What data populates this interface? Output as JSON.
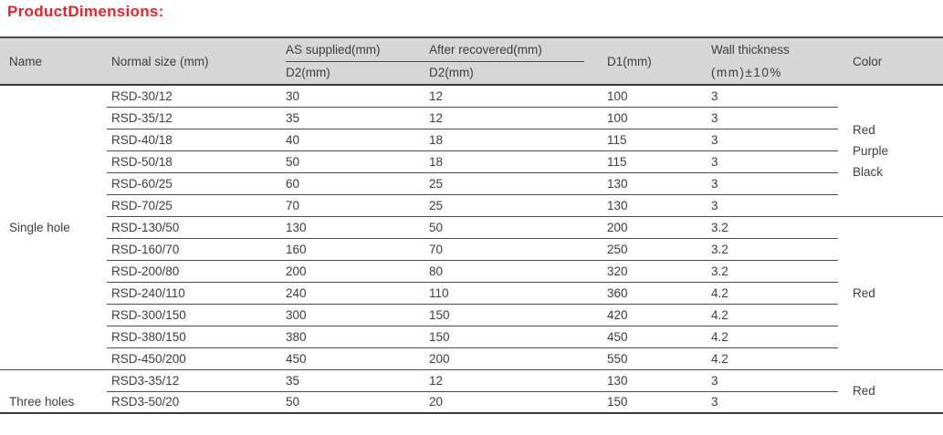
{
  "title": "ProductDimensions:",
  "colors": {
    "title_red": "#e82329",
    "header_bg": "#d6d6d6",
    "text": "#3d3d3d",
    "rule_line": "#4f4f4f"
  },
  "table": {
    "headers": {
      "name": "Name",
      "normal_size": "Normal size (mm)",
      "as_supplied": "AS supplied(mm)",
      "as_supplied_sub": "D2(mm)",
      "after_recovered": "After recovered(mm)",
      "after_recovered_sub": "D2(mm)",
      "d1": "D1(mm)",
      "wall_line1": "Wall thickness",
      "wall_line2": "(mm)±10%",
      "color": "Color"
    },
    "groups": [
      {
        "name": "Single hole",
        "rows": [
          {
            "size": "RSD-30/12",
            "as_d2": "30",
            "after_d2": "12",
            "d1": "100",
            "wall": "3"
          },
          {
            "size": "RSD-35/12",
            "as_d2": "35",
            "after_d2": "12",
            "d1": "100",
            "wall": "3"
          },
          {
            "size": "RSD-40/18",
            "as_d2": "40",
            "after_d2": "18",
            "d1": "115",
            "wall": "3"
          },
          {
            "size": "RSD-50/18",
            "as_d2": "50",
            "after_d2": "18",
            "d1": "115",
            "wall": "3"
          },
          {
            "size": "RSD-60/25",
            "as_d2": "60",
            "after_d2": "25",
            "d1": "130",
            "wall": "3"
          },
          {
            "size": "RSD-70/25",
            "as_d2": "70",
            "after_d2": "25",
            "d1": "130",
            "wall": "3"
          },
          {
            "size": "RSD-130/50",
            "as_d2": "130",
            "after_d2": "50",
            "d1": "200",
            "wall": "3.2"
          },
          {
            "size": "RSD-160/70",
            "as_d2": "160",
            "after_d2": "70",
            "d1": "250",
            "wall": "3.2"
          },
          {
            "size": "RSD-200/80",
            "as_d2": "200",
            "after_d2": "80",
            "d1": "320",
            "wall": "3.2"
          },
          {
            "size": "RSD-240/110",
            "as_d2": "240",
            "after_d2": "110",
            "d1": "360",
            "wall": "4.2"
          },
          {
            "size": "RSD-300/150",
            "as_d2": "300",
            "after_d2": "150",
            "d1": "420",
            "wall": "4.2"
          },
          {
            "size": "RSD-380/150",
            "as_d2": "380",
            "after_d2": "150",
            "d1": "450",
            "wall": "4.2"
          },
          {
            "size": "RSD-450/200",
            "as_d2": "450",
            "after_d2": "200",
            "d1": "550",
            "wall": "4.2"
          }
        ],
        "color_spans": [
          {
            "span": 6,
            "lines": [
              "Red",
              "Purple",
              "Black"
            ]
          },
          {
            "span": 7,
            "lines": [
              "Red"
            ]
          }
        ]
      },
      {
        "name": "Three holes",
        "rows": [
          {
            "size": "RSD3-35/12",
            "as_d2": "35",
            "after_d2": "12",
            "d1": "130",
            "wall": "3"
          },
          {
            "size": "RSD3-50/20",
            "as_d2": "50",
            "after_d2": "20",
            "d1": "150",
            "wall": "3"
          }
        ],
        "color_spans": [
          {
            "span": 2,
            "lines": [
              "Red"
            ]
          }
        ]
      }
    ]
  }
}
